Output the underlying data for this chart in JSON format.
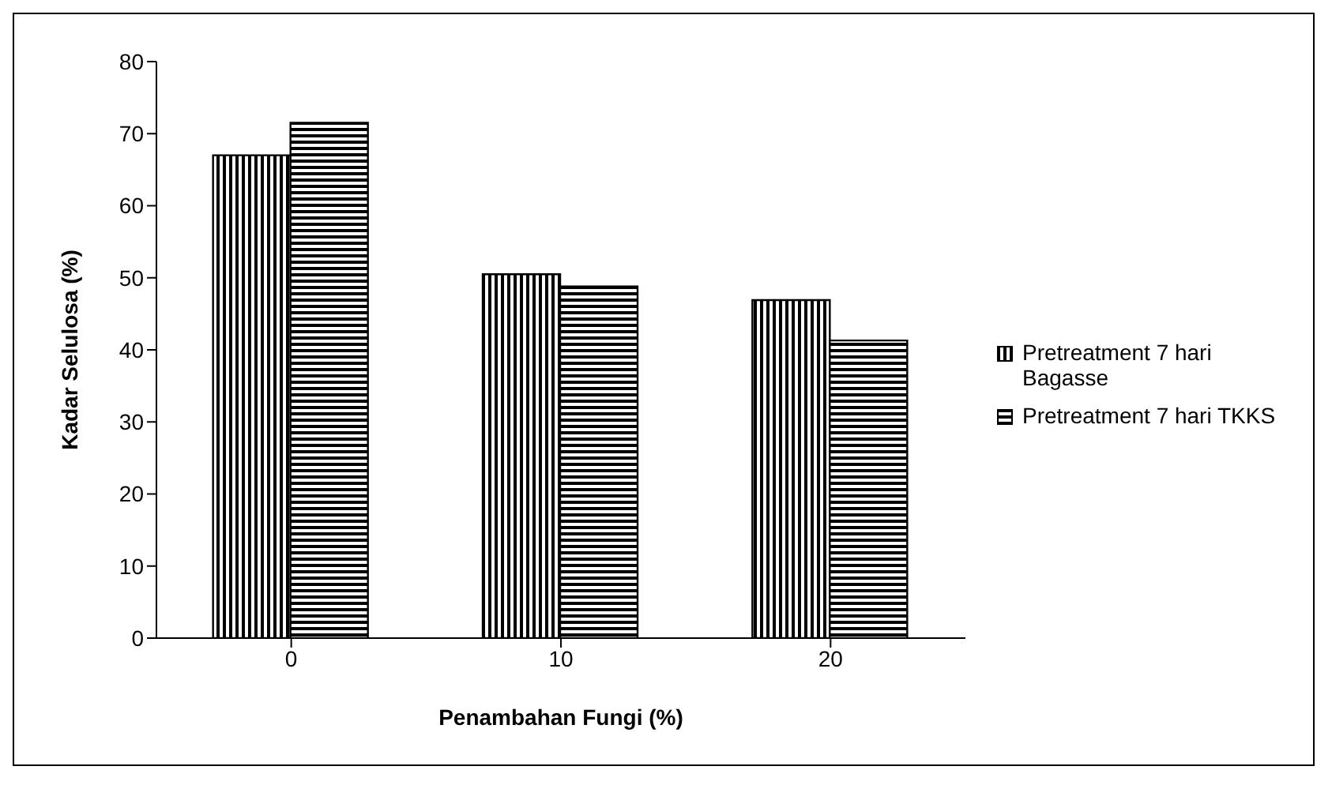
{
  "chart_data": {
    "type": "bar",
    "xlabel": "Penambahan Fungi (%)",
    "ylabel": "Kadar Selulosa (%)",
    "categories": [
      "0",
      "10",
      "20"
    ],
    "series": [
      {
        "name": "Pretreatment 7 hari Bagasse",
        "color": "#000000",
        "values": [
          67,
          50.5,
          46.9
        ]
      },
      {
        "name": "Pretreatment 7 hari TKKS",
        "color": "#000000",
        "values": [
          71.5,
          48.8,
          41.3
        ]
      }
    ],
    "ylim": [
      0,
      80
    ],
    "yticks": [
      0,
      10,
      20,
      30,
      40,
      50,
      60,
      70,
      80
    ],
    "grid": false,
    "legend": "right"
  }
}
